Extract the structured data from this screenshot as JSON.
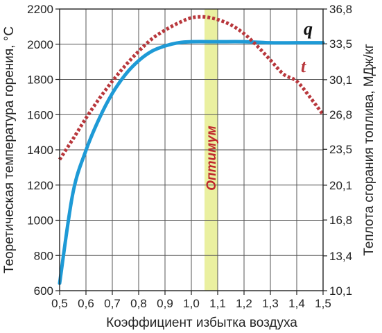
{
  "chart_data": {
    "type": "line",
    "xlabel": "Коэффициент избытка воздуха",
    "ylabel_left": "Теоретическая температура горения, °С",
    "ylabel_right": "Теплота сгорания топлива, МДж/кг",
    "x_ticks": [
      "0,5",
      "0,6",
      "0,7",
      "0,8",
      "0,9",
      "1,0",
      "1,1",
      "1,2",
      "1,3",
      "1,4",
      "1,5"
    ],
    "y_left_ticks": [
      "600",
      "800",
      "1000",
      "1200",
      "1400",
      "1600",
      "1800",
      "2000",
      "2200"
    ],
    "y_right_ticks": [
      "10,1",
      "13,4",
      "16,8",
      "20,1",
      "23,5",
      "26,8",
      "30,1",
      "33,5",
      "36,8"
    ],
    "xlim": [
      0.5,
      1.5
    ],
    "ylim_left": [
      600,
      2200
    ],
    "ylim_right": [
      10.1,
      36.8
    ],
    "grid": true,
    "highlight": {
      "label": "Оптимум",
      "x_range": [
        1.05,
        1.1
      ],
      "color": "#eaf0a0"
    },
    "series": [
      {
        "name": "q",
        "axis": "right",
        "style": "solid",
        "color": "#1e9ad6",
        "x": [
          0.5,
          0.55,
          0.6,
          0.65,
          0.7,
          0.75,
          0.8,
          0.85,
          0.9,
          0.95,
          1.0,
          1.1,
          1.2,
          1.3,
          1.4,
          1.5
        ],
        "y": [
          10.8,
          19.3,
          23.4,
          26.4,
          28.8,
          30.6,
          31.9,
          32.8,
          33.3,
          33.6,
          33.7,
          33.7,
          33.7,
          33.6,
          33.6,
          33.6
        ]
      },
      {
        "name": "t",
        "axis": "left",
        "style": "dotted",
        "color": "#b8373c",
        "x": [
          0.5,
          0.55,
          0.6,
          0.65,
          0.7,
          0.75,
          0.8,
          0.85,
          0.9,
          0.95,
          1.0,
          1.05,
          1.1,
          1.15,
          1.2,
          1.25,
          1.3,
          1.35,
          1.4,
          1.45,
          1.5
        ],
        "y": [
          1345,
          1460,
          1580,
          1690,
          1790,
          1880,
          1960,
          2030,
          2080,
          2120,
          2150,
          2155,
          2140,
          2110,
          2060,
          1990,
          1910,
          1830,
          1790,
          1700,
          1600
        ]
      }
    ]
  }
}
